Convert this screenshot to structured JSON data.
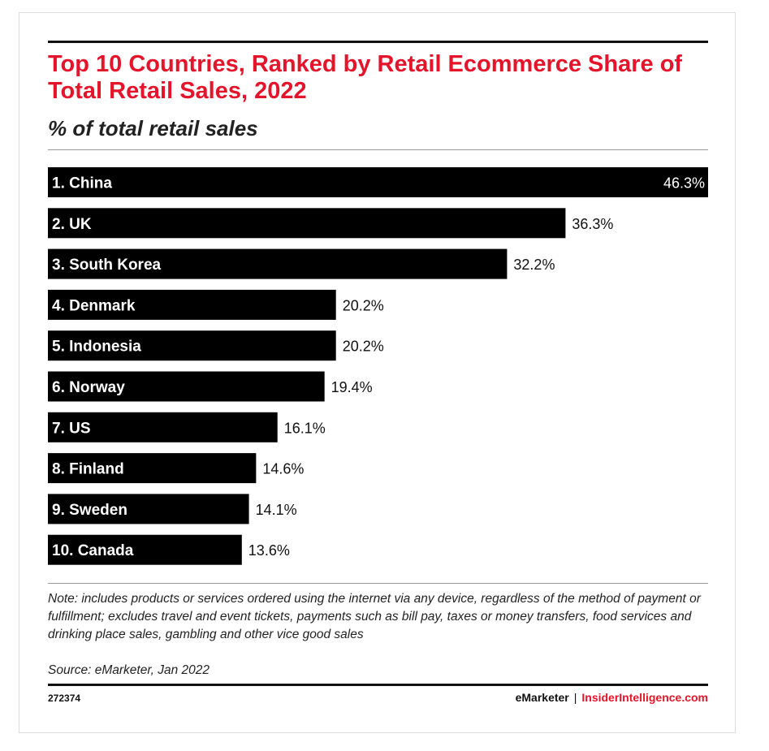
{
  "colors": {
    "accent": "#e4142b",
    "bar": "#000000",
    "bar_label": "#ffffff",
    "value_label": "#111111"
  },
  "header": {
    "title": "Top 10 Countries, Ranked by Retail Ecommerce Share of Total Retail Sales, 2022",
    "subtitle": "% of total retail sales"
  },
  "chart_data": {
    "type": "bar",
    "orientation": "horizontal",
    "categories": [
      "1. China",
      "2. UK",
      "3. South Korea",
      "4. Denmark",
      "5. Indonesia",
      "6. Norway",
      "7. US",
      "8. Finland",
      "9. Sweden",
      "10. Canada"
    ],
    "values": [
      46.3,
      36.3,
      32.2,
      20.2,
      20.2,
      19.4,
      16.1,
      14.6,
      14.1,
      13.6
    ],
    "value_labels": [
      "46.3%",
      "36.3%",
      "32.2%",
      "20.2%",
      "20.2%",
      "19.4%",
      "16.1%",
      "14.6%",
      "14.1%",
      "13.6%"
    ],
    "title": "Top 10 Countries, Ranked by Retail Ecommerce Share of Total Retail Sales, 2022",
    "subtitle": "% of total retail sales",
    "xlim": [
      0,
      46.3
    ],
    "grid": false,
    "legend": false
  },
  "footer": {
    "note": "Note: includes products or services ordered using the internet via any device, regardless of the method of payment or fulfillment; excludes travel and event tickets, payments such as bill pay, taxes or money transfers, food services and drinking place sales, gambling and other vice good sales",
    "source": "Source: eMarketer, Jan 2022",
    "chart_id": "272374",
    "brand_emarketer": "eMarketer",
    "brand_separator": "|",
    "brand_insider": "InsiderIntelligence.com"
  }
}
